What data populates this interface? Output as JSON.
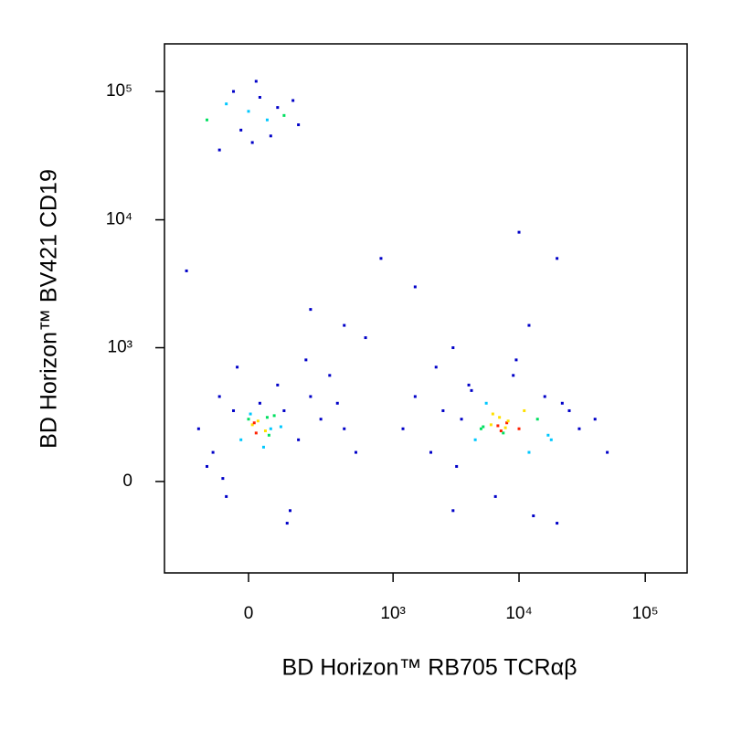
{
  "chart_data": {
    "type": "scatter",
    "x_label": "BD Horizon™ RB705 TCRαβ",
    "y_label": "BD Horizon™ BV421 CD19",
    "xlim": [
      -318,
      214600
    ],
    "ylim": [
      -454,
      234800
    ],
    "xticks": [
      0,
      {
        "value": 1000,
        "label": "10³"
      },
      {
        "value": 10000,
        "label": "10⁴"
      },
      {
        "value": 100000,
        "label": "10⁵"
      }
    ],
    "yticks": [
      0,
      {
        "value": 1000,
        "label": "10³"
      },
      {
        "value": 10000,
        "label": "10⁴"
      },
      {
        "value": 100000,
        "label": "10⁵"
      }
    ],
    "x": [
      -120,
      -60,
      -20,
      0,
      30,
      60,
      100,
      150,
      -80,
      20,
      80,
      -40,
      10,
      50,
      130,
      -150,
      -100,
      -80,
      -60,
      -40,
      -20,
      0,
      10,
      20,
      30,
      40,
      50,
      60,
      80,
      100,
      120,
      150,
      200,
      250,
      300,
      400,
      500,
      -120,
      -30,
      15,
      45,
      70,
      90,
      110,
      180,
      350,
      -70,
      25,
      55,
      5,
      1200,
      1500,
      2000,
      2500,
      3000,
      3500,
      4000,
      4500,
      5000,
      5500,
      6000,
      6500,
      7000,
      7500,
      8000,
      9000,
      10000,
      11000,
      12000,
      14000,
      16000,
      18000,
      20000,
      25000,
      30000,
      40000,
      50000,
      2200,
      3200,
      4200,
      5200,
      6200,
      7200,
      8200,
      9500,
      13000,
      17000,
      22000,
      6800,
      7800,
      200,
      400,
      800,
      1500,
      3000,
      10000,
      20000,
      600,
      -200,
      12000
    ],
    "values": [
      60000,
      80000,
      50000,
      70000,
      90000,
      45000,
      65000,
      55000,
      35000,
      120000,
      75000,
      100000,
      40000,
      60000,
      85000,
      200,
      100,
      400,
      -50,
      300,
      150,
      250,
      220,
      180,
      350,
      120,
      260,
      200,
      500,
      300,
      -100,
      150,
      400,
      250,
      600,
      200,
      100,
      50,
      700,
      230,
      190,
      270,
      210,
      -150,
      800,
      350,
      10,
      240,
      170,
      280,
      200,
      400,
      100,
      300,
      -100,
      250,
      500,
      150,
      200,
      350,
      220,
      -50,
      260,
      180,
      230,
      600,
      200,
      300,
      100,
      250,
      400,
      150,
      -150,
      300,
      200,
      250,
      100,
      700,
      50,
      450,
      210,
      280,
      190,
      240,
      800,
      -120,
      170,
      350,
      215,
      205,
      2000,
      1500,
      5000,
      3000,
      1000,
      8000,
      5000,
      1200,
      4000,
      1500
    ],
    "colors": [
      "#00e060",
      "#00c8ff",
      "#0000c8",
      "#00c8ff",
      "#0000c8",
      "#0000c8",
      "#00e060",
      "#0000c8",
      "#0000c8",
      "#0000c8",
      "#0000c8",
      "#0000c8",
      "#0000c8",
      "#00c8ff",
      "#0000c8",
      "#0000c8",
      "#0000c8",
      "#0000c8",
      "#0000c8",
      "#0000c8",
      "#00c8ff",
      "#00e060",
      "#ffe000",
      "#ff2000",
      "#0000c8",
      "#00c8ff",
      "#00e060",
      "#00c8ff",
      "#0000c8",
      "#0000c8",
      "#0000c8",
      "#0000c8",
      "#0000c8",
      "#0000c8",
      "#0000c8",
      "#0000c8",
      "#0000c8",
      "#0000c8",
      "#0000c8",
      "#ff2000",
      "#ffe000",
      "#00e060",
      "#00c8ff",
      "#0000c8",
      "#0000c8",
      "#0000c8",
      "#0000c8",
      "#ffe000",
      "#00e060",
      "#00c8ff",
      "#0000c8",
      "#0000c8",
      "#0000c8",
      "#0000c8",
      "#0000c8",
      "#0000c8",
      "#0000c8",
      "#00c8ff",
      "#00e060",
      "#00c8ff",
      "#ffe000",
      "#0000c8",
      "#ffe000",
      "#00e060",
      "#ff2000",
      "#0000c8",
      "#ff2000",
      "#ffe000",
      "#00c8ff",
      "#00e060",
      "#0000c8",
      "#00c8ff",
      "#0000c8",
      "#0000c8",
      "#0000c8",
      "#0000c8",
      "#0000c8",
      "#0000c8",
      "#0000c8",
      "#0000c8",
      "#00e060",
      "#ffe000",
      "#ff2000",
      "#ffe000",
      "#0000c8",
      "#0000c8",
      "#00c8ff",
      "#0000c8",
      "#ff2000",
      "#ffe000",
      "#0000c8",
      "#0000c8",
      "#0000c8",
      "#0000c8",
      "#0000c8",
      "#0000c8",
      "#0000c8",
      "#0000c8",
      "#0000c8",
      "#0000c8"
    ]
  }
}
